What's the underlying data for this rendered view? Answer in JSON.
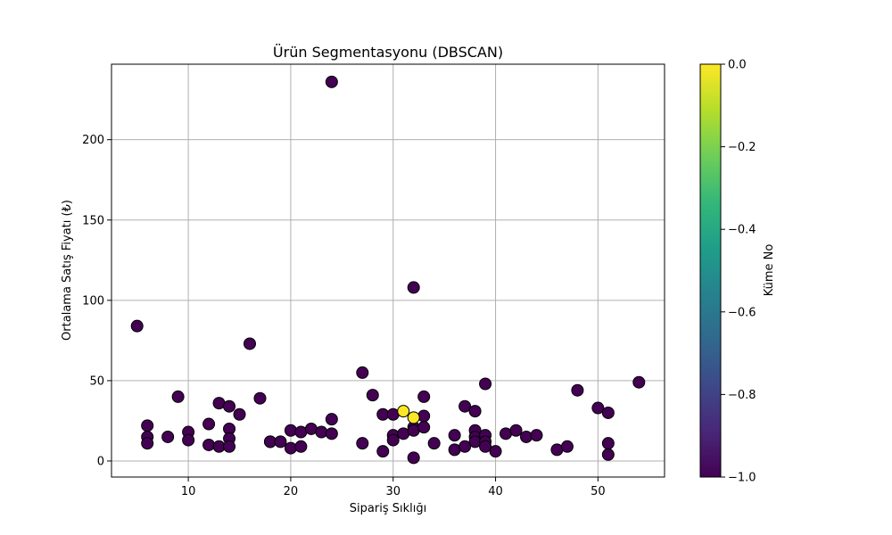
{
  "chart_data": {
    "type": "scatter",
    "title": "Ürün Segmentasyonu (DBSCAN)",
    "xlabel": "Sipariş Sıklığı",
    "ylabel": "Ortalama Satış Fiyatı (₺)",
    "xlim": [
      2.5,
      56.5
    ],
    "ylim": [
      -10,
      247
    ],
    "xticks": [
      10,
      20,
      30,
      40,
      50
    ],
    "yticks": [
      0,
      50,
      100,
      150,
      200
    ],
    "grid": true,
    "colorbar": {
      "label": "Küme No",
      "range": [
        -1.0,
        0.0
      ],
      "ticks": [
        0.0,
        -0.2,
        -0.4,
        -0.6,
        -0.8,
        -1.0
      ],
      "tick_labels": [
        "0.0",
        "−0.2",
        "−0.4",
        "−0.6",
        "−0.8",
        "−1.0"
      ],
      "colormap": "viridis",
      "colors": [
        "#440154",
        "#482878",
        "#3e4989",
        "#31688e",
        "#26828e",
        "#1f9e89",
        "#35b779",
        "#6ece58",
        "#b5de2b",
        "#fde725"
      ]
    },
    "series": [
      {
        "cluster": -1,
        "color": "#440154",
        "points": [
          [
            5,
            84
          ],
          [
            6,
            22
          ],
          [
            6,
            15
          ],
          [
            6,
            11
          ],
          [
            8,
            15
          ],
          [
            9,
            40
          ],
          [
            10,
            18
          ],
          [
            10,
            13
          ],
          [
            12,
            23
          ],
          [
            12,
            10
          ],
          [
            13,
            36
          ],
          [
            13,
            9
          ],
          [
            14,
            34
          ],
          [
            14,
            20
          ],
          [
            14,
            14
          ],
          [
            14,
            9
          ],
          [
            15,
            29
          ],
          [
            16,
            73
          ],
          [
            17,
            39
          ],
          [
            18,
            12
          ],
          [
            18,
            12
          ],
          [
            19,
            12
          ],
          [
            20,
            19
          ],
          [
            20,
            8
          ],
          [
            21,
            18
          ],
          [
            21,
            9
          ],
          [
            22,
            20
          ],
          [
            23,
            18
          ],
          [
            24,
            236
          ],
          [
            24,
            26
          ],
          [
            24,
            17
          ],
          [
            27,
            55
          ],
          [
            27,
            11
          ],
          [
            28,
            41
          ],
          [
            29,
            29
          ],
          [
            29,
            6
          ],
          [
            30,
            29
          ],
          [
            30,
            16
          ],
          [
            30,
            13
          ],
          [
            31,
            17
          ],
          [
            32,
            108
          ],
          [
            32,
            21
          ],
          [
            32,
            19
          ],
          [
            32,
            2
          ],
          [
            33,
            40
          ],
          [
            33,
            28
          ],
          [
            33,
            21
          ],
          [
            34,
            11
          ],
          [
            36,
            16
          ],
          [
            36,
            7
          ],
          [
            37,
            34
          ],
          [
            37,
            9
          ],
          [
            38,
            31
          ],
          [
            38,
            19
          ],
          [
            38,
            15
          ],
          [
            38,
            12
          ],
          [
            39,
            48
          ],
          [
            39,
            16
          ],
          [
            39,
            12
          ],
          [
            39,
            9
          ],
          [
            40,
            6
          ],
          [
            41,
            17
          ],
          [
            42,
            19
          ],
          [
            43,
            15
          ],
          [
            44,
            16
          ],
          [
            46,
            7
          ],
          [
            47,
            9
          ],
          [
            48,
            44
          ],
          [
            50,
            33
          ],
          [
            51,
            30
          ],
          [
            51,
            11
          ],
          [
            51,
            4
          ],
          [
            54,
            49
          ]
        ]
      },
      {
        "cluster": 0,
        "color": "#fde725",
        "points": [
          [
            31,
            31
          ],
          [
            32,
            27
          ]
        ]
      }
    ]
  }
}
